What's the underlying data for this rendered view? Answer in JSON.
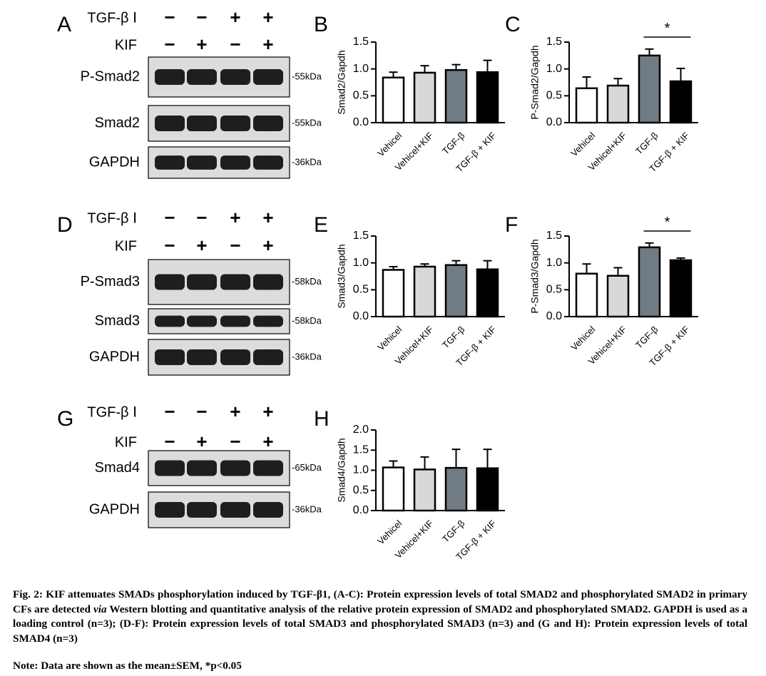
{
  "colors": {
    "vehicel": "#ffffff",
    "vehicel_kif": "#d6d8d9",
    "tgf": "#707b84",
    "tgf_kif": "#000000",
    "blot_bg": "#dcdcdc",
    "band": "#1e1e1e"
  },
  "blots": [
    {
      "letter": "A",
      "treatments": [
        {
          "label": "TGF-β Ⅰ",
          "signs": [
            "−",
            "−",
            "+",
            "+"
          ]
        },
        {
          "label": "KIF",
          "signs": [
            "−",
            "+",
            "−",
            "+"
          ]
        }
      ],
      "rows": [
        {
          "label": "P-Smad2",
          "size": "-55kDa"
        },
        {
          "label": "Smad2",
          "size": "-55kDa"
        },
        {
          "label": "GAPDH",
          "size": "-36kDa"
        }
      ]
    },
    {
      "letter": "D",
      "treatments": [
        {
          "label": "TGF-β Ⅰ",
          "signs": [
            "−",
            "−",
            "+",
            "+"
          ]
        },
        {
          "label": "KIF",
          "signs": [
            "−",
            "+",
            "−",
            "+"
          ]
        }
      ],
      "rows": [
        {
          "label": "P-Smad3",
          "size": "-58kDa"
        },
        {
          "label": "Smad3",
          "size": "-58kDa"
        },
        {
          "label": "GAPDH",
          "size": "-36kDa"
        }
      ]
    },
    {
      "letter": "G",
      "treatments": [
        {
          "label": "TGF-β Ⅰ",
          "signs": [
            "−",
            "−",
            "+",
            "+"
          ]
        },
        {
          "label": "KIF",
          "signs": [
            "−",
            "+",
            "−",
            "+"
          ]
        }
      ],
      "rows": [
        {
          "label": "Smad4",
          "size": "-65kDa"
        },
        {
          "label": "GAPDH",
          "size": "-36kDa"
        }
      ]
    }
  ],
  "chart_data": [
    {
      "panel": "B",
      "type": "bar",
      "ylabel": "Smad2/Gapdh",
      "categories": [
        "Vehicel",
        "Vehicel+KIF",
        "TGF-β",
        "TGF-β + KIF"
      ],
      "values": [
        0.84,
        0.93,
        0.98,
        0.94
      ],
      "errors": [
        0.1,
        0.13,
        0.1,
        0.22
      ],
      "ylim": [
        0,
        1.5
      ],
      "yticks": [
        "0.0",
        "0.5",
        "1.0",
        "1.5"
      ],
      "significance": null
    },
    {
      "panel": "C",
      "type": "bar",
      "ylabel": "P-Smad2/Gapdh",
      "categories": [
        "Vehicel",
        "Vehicel+KIF",
        "TGF-β",
        "TGF-β + KIF"
      ],
      "values": [
        0.64,
        0.69,
        1.25,
        0.77
      ],
      "errors": [
        0.21,
        0.13,
        0.12,
        0.24
      ],
      "ylim": [
        0,
        1.5
      ],
      "yticks": [
        "0.0",
        "0.5",
        "1.0",
        "1.5"
      ],
      "significance": {
        "from": 2,
        "to": 3,
        "label": "*"
      }
    },
    {
      "panel": "E",
      "type": "bar",
      "ylabel": "Smad3/Gapdh",
      "categories": [
        "Vehicel",
        "Vehicel+KIF",
        "TGF-β",
        "TGF-β + KIF"
      ],
      "values": [
        0.87,
        0.93,
        0.96,
        0.88
      ],
      "errors": [
        0.06,
        0.05,
        0.08,
        0.16
      ],
      "ylim": [
        0,
        1.5
      ],
      "yticks": [
        "0.0",
        "0.5",
        "1.0",
        "1.5"
      ],
      "significance": null
    },
    {
      "panel": "F",
      "type": "bar",
      "ylabel": "P-Smad3/Gapdh",
      "categories": [
        "Vehicel",
        "Vehicel+KIF",
        "TGF-β",
        "TGF-β + KIF"
      ],
      "values": [
        0.8,
        0.76,
        1.29,
        1.05
      ],
      "errors": [
        0.18,
        0.15,
        0.08,
        0.04
      ],
      "ylim": [
        0,
        1.5
      ],
      "yticks": [
        "0.0",
        "0.5",
        "1.0",
        "1.5"
      ],
      "significance": {
        "from": 2,
        "to": 3,
        "label": "*"
      }
    },
    {
      "panel": "H",
      "type": "bar",
      "ylabel": "Smad4/Gapdh",
      "categories": [
        "Vehicel",
        "Vehicel+KIF",
        "TGF-β",
        "TGF-β + KIF"
      ],
      "values": [
        1.07,
        1.02,
        1.06,
        1.05
      ],
      "errors": [
        0.16,
        0.31,
        0.46,
        0.47
      ],
      "ylim": [
        0,
        2.0
      ],
      "yticks": [
        "0.0",
        "0.5",
        "1.0",
        "1.5",
        "2.0"
      ],
      "significance": null
    }
  ],
  "caption": {
    "label": "Fig. 2:",
    "text_before_via": " KIF attenuates SMADs phosphorylation induced by TGF-β1, (A-C): Protein expression levels of total SMAD2 and phosphorylated SMAD2 in primary CFs are detected ",
    "via": "via",
    "text_after_via": " Western blotting and quantitative analysis of the relative protein expression of SMAD2 and phosphorylated SMAD2. GAPDH is used as a loading control (n=3); (D-F): Protein expression levels of total SMAD3 and phosphorylated SMAD3 (n=3) and (G and H): Protein expression levels of total SMAD4 (n=3)",
    "note": "Note: Data are shown as the mean±SEM, *p<0.05"
  }
}
